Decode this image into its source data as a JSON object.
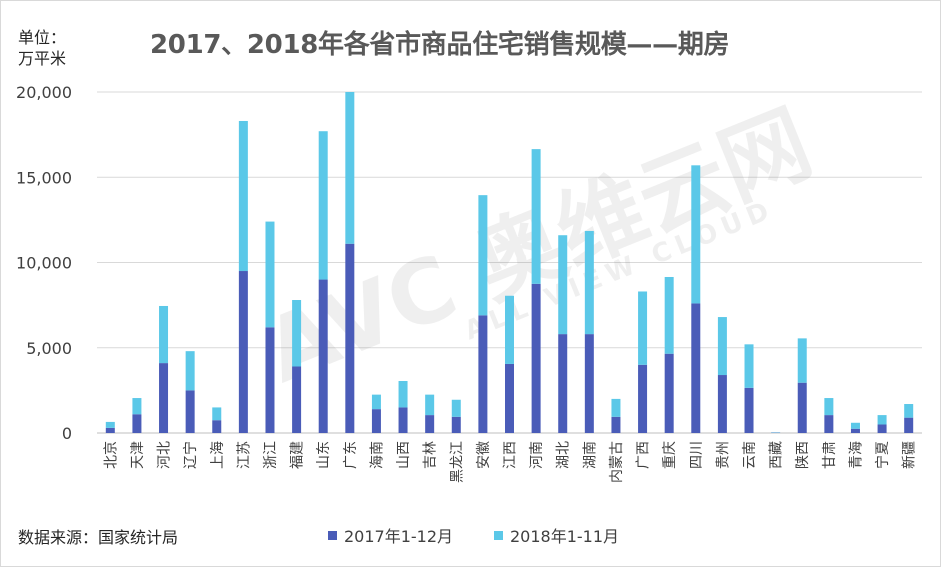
{
  "chart_data": {
    "type": "bar",
    "stacked": true,
    "title": "2017、2018年各省市商品住宅销售规模——期房",
    "ylabel": "单位：\n万平米",
    "ylabel_lines": [
      "单位：",
      "万平米"
    ],
    "source": "数据来源：国家统计局",
    "ylim": [
      0,
      20000
    ],
    "yticks": [
      0,
      5000,
      10000,
      15000,
      20000
    ],
    "ytick_labels": [
      "0",
      "5,000",
      "10,000",
      "15,000",
      "20,000"
    ],
    "grid": true,
    "legend_position": "bottom",
    "categories": [
      "北京",
      "天津",
      "河北",
      "辽宁",
      "上海",
      "江苏",
      "浙江",
      "福建",
      "山东",
      "广东",
      "海南",
      "山西",
      "吉林",
      "黑龙江",
      "安徽",
      "江西",
      "河南",
      "湖北",
      "湖南",
      "内蒙古",
      "广西",
      "重庆",
      "四川",
      "贵州",
      "云南",
      "西藏",
      "陕西",
      "甘肃",
      "青海",
      "宁夏",
      "新疆"
    ],
    "series": [
      {
        "name": "2017年1-12月",
        "color": "#4a5cb8",
        "values": [
          300,
          1100,
          4100,
          2500,
          750,
          9500,
          6200,
          3900,
          9000,
          11100,
          1400,
          1500,
          1050,
          950,
          6900,
          4050,
          8750,
          5800,
          5800,
          950,
          4000,
          4650,
          7600,
          3400,
          2650,
          20,
          2950,
          1050,
          250,
          500,
          900
        ]
      },
      {
        "name": "2018年1-11月",
        "color": "#5bc8e8",
        "values": [
          350,
          950,
          3350,
          2300,
          750,
          8800,
          6200,
          3900,
          8700,
          8900,
          850,
          1550,
          1200,
          1000,
          7050,
          4000,
          7900,
          5800,
          6050,
          1050,
          4300,
          4500,
          8100,
          3400,
          2550,
          20,
          2600,
          1000,
          350,
          550,
          800
        ]
      }
    ],
    "watermark": "AVC 奥维云网 ALL VIEW CLOUD"
  }
}
